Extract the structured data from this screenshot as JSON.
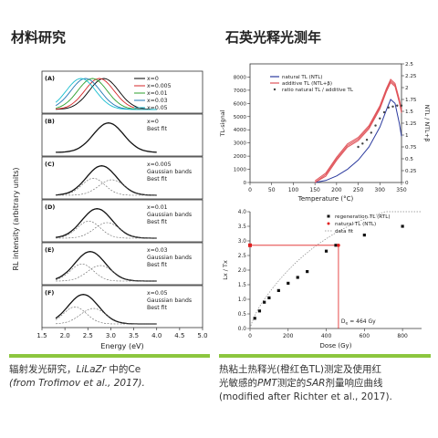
{
  "titles": {
    "left": "材料研究",
    "right": "石英光释光测年"
  },
  "captions": {
    "left_line1_a": "辐射发光研究，",
    "left_line1_b": "LiLaZr",
    "left_line1_c": " 中的Ce",
    "left_line2": "(from Trofimov et al., 2017).",
    "right_line1": "热粘土热释光(橙红色TL)测定及使用红",
    "right_line2_a": "光敏感的",
    "right_line2_b": "PMT",
    "right_line2_c": "测定的",
    "right_line2_d": "SAR",
    "right_line2_e": "剂量响应曲线",
    "right_line3": "(modified after Richter et al., 2017)."
  },
  "colors": {
    "accent_rule": "#8cc63f"
  },
  "chart_data": [
    {
      "type": "line",
      "xlabel": "Energy (eV)",
      "ylabel": "RL intensity (arbitrary units)",
      "xlim": [
        1.5,
        5.0
      ],
      "xticks": [
        "1.5",
        "2.0",
        "2.5",
        "3.0",
        "3.5",
        "4.0",
        "4.5",
        "5.0"
      ],
      "panels": [
        {
          "label": "(A)",
          "legend": [
            "x=0",
            "x=0.005",
            "x=0.01",
            "x=0.03",
            "x=0.05"
          ],
          "series": [
            {
              "name": "x=0",
              "peak": 2.85,
              "color": "#000000"
            },
            {
              "name": "x=0.005",
              "peak": 2.75,
              "color": "#d62728"
            },
            {
              "name": "x=0.01",
              "peak": 2.6,
              "color": "#2ca02c"
            },
            {
              "name": "x=0.03",
              "peak": 2.45,
              "color": "#1f77b4"
            },
            {
              "name": "x=0.05",
              "peak": 2.35,
              "color": "#17becf"
            }
          ]
        },
        {
          "label": "(B)",
          "legend": [
            "x=0",
            "Best fit"
          ],
          "peak": 2.95
        },
        {
          "label": "(C)",
          "legend": [
            "x=0.005",
            "Gaussian bands",
            "Best fit"
          ],
          "peak": 2.8
        },
        {
          "label": "(D)",
          "legend": [
            "x=0.01",
            "Gaussian bands",
            "Best fit"
          ],
          "peak": 2.7
        },
        {
          "label": "(E)",
          "legend": [
            "x=0.03",
            "Gaussian bands",
            "Best fit"
          ],
          "peak": 2.55
        },
        {
          "label": "(F)",
          "legend": [
            "x=0.05",
            "Gaussian bands",
            "Best fit"
          ],
          "peak": 2.4
        }
      ]
    },
    {
      "type": "line",
      "xlabel": "Temperature (°C)",
      "ylabel": "TL-signal",
      "y2label": "NTL / NTL+β",
      "xlim": [
        0,
        350
      ],
      "ylim": [
        0,
        9000
      ],
      "y2lim": [
        0,
        2.5
      ],
      "xticks": [
        "0",
        "50",
        "100",
        "150",
        "200",
        "250",
        "300",
        "350"
      ],
      "yticks": [
        "0",
        "1000",
        "2000",
        "3000",
        "4000",
        "5000",
        "6000",
        "7000",
        "8000"
      ],
      "y2ticks": [
        "0",
        "0.25",
        "0.5",
        "0.75",
        "1",
        "1.25",
        "1.5",
        "1.75",
        "2",
        "2.25",
        "2.5"
      ],
      "legend": [
        "natural TL (NTL)",
        "additive TL (NTL+β)",
        "ratio natural TL / additive TL"
      ],
      "series": [
        {
          "name": "natural TL (NTL)",
          "color": "#2b3a9e",
          "x": [
            150,
            175,
            200,
            225,
            250,
            275,
            300,
            315,
            325,
            335,
            345,
            350
          ],
          "y": [
            0,
            150,
            500,
            1000,
            1700,
            2700,
            4200,
            5500,
            6300,
            6000,
            4500,
            3500
          ]
        },
        {
          "name": "additive TL (NTL+β)",
          "color": "#e0545a",
          "x": [
            150,
            175,
            200,
            225,
            250,
            275,
            300,
            315,
            325,
            335,
            345,
            350
          ],
          "y": [
            0,
            600,
            1800,
            2800,
            3300,
            4200,
            5700,
            7000,
            7700,
            7400,
            6200,
            5400
          ]
        },
        {
          "name": "ratio natural TL / additive TL",
          "color": "#444444",
          "axis": "y2",
          "x": [
            250,
            260,
            270,
            280,
            290,
            300,
            310,
            320,
            330,
            340,
            350
          ],
          "y": [
            0.75,
            0.82,
            0.9,
            1.05,
            1.2,
            1.35,
            1.48,
            1.58,
            1.6,
            1.62,
            1.62
          ]
        }
      ]
    },
    {
      "type": "scatter",
      "xlabel": "Dose (Gy)",
      "ylabel": "Lx / Tx",
      "xlim": [
        0,
        900
      ],
      "ylim": [
        0,
        4.0
      ],
      "xticks": [
        "0",
        "200",
        "400",
        "600",
        "800"
      ],
      "yticks": [
        "0.0",
        "0.5",
        "1.0",
        "1.5",
        "2.0",
        "2.5",
        "3.0",
        "3.5",
        "4.0"
      ],
      "legend": [
        "regeneration TL (RTL)",
        "natural TL (NTL)",
        "data fit"
      ],
      "annotation": "D",
      "annotation_sub": "e",
      "annotation_val": " = 464 Gy",
      "natural_ratio": 2.85,
      "De": 464,
      "series": [
        {
          "name": "regeneration TL (RTL)",
          "color": "#111111",
          "x": [
            25,
            50,
            75,
            100,
            150,
            200,
            250,
            300,
            400,
            450,
            600,
            800
          ],
          "y": [
            0.35,
            0.6,
            0.9,
            1.05,
            1.3,
            1.55,
            1.75,
            1.95,
            2.65,
            2.85,
            3.2,
            3.5
          ]
        },
        {
          "name": "natural TL (NTL)",
          "color": "#e02020",
          "x": [
            464
          ],
          "y": [
            2.85
          ]
        }
      ]
    }
  ]
}
